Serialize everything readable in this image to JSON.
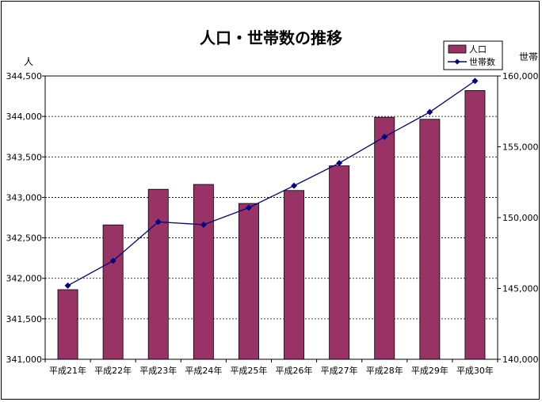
{
  "chart_data": {
    "type": "bar+line",
    "title": "人口・世帯数の推移",
    "categories": [
      "平成21年",
      "平成22年",
      "平成23年",
      "平成24年",
      "平成25年",
      "平成26年",
      "平成27年",
      "平成28年",
      "平成29年",
      "平成30年"
    ],
    "series": [
      {
        "name": "人口",
        "type": "bar",
        "axis": "left",
        "color": "#993366",
        "values": [
          341860,
          342660,
          343100,
          343160,
          342925,
          343085,
          343390,
          343990,
          343965,
          344320
        ]
      },
      {
        "name": "世帯数",
        "type": "line",
        "axis": "right",
        "color": "#000080",
        "values": [
          145200,
          146950,
          149700,
          149500,
          150700,
          152250,
          153850,
          155700,
          157450,
          159650
        ]
      }
    ],
    "y_left": {
      "label": "人",
      "min": 341000,
      "max": 344500,
      "step": 500,
      "ticks": [
        "341,000",
        "341,500",
        "342,000",
        "342,500",
        "343,000",
        "343,500",
        "344,000",
        "344,500"
      ]
    },
    "y_right": {
      "label": "世帯",
      "min": 140000,
      "max": 160000,
      "step": 5000,
      "ticks": [
        "140,000",
        "145,000",
        "150,000",
        "155,000",
        "160,000"
      ]
    },
    "legend": {
      "placement": "top-right"
    },
    "grid": true
  }
}
